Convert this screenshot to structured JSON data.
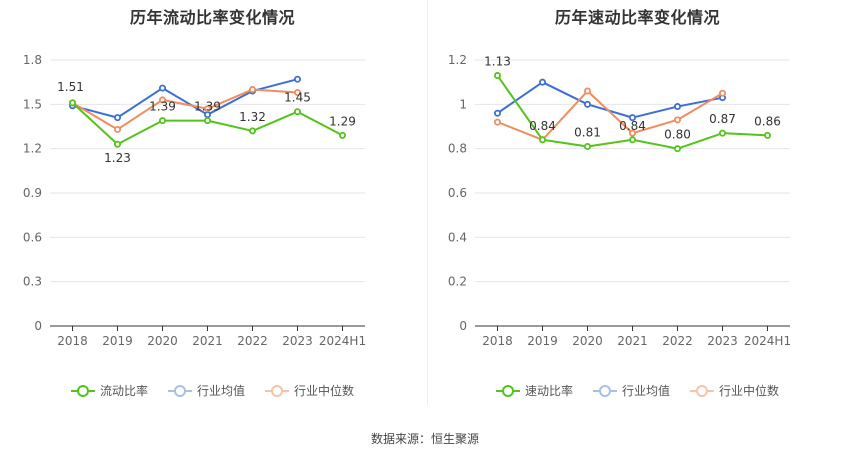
{
  "footer": {
    "source": "数据来源：恒生聚源"
  },
  "chart_data": [
    {
      "type": "line",
      "title": "历年流动比率变化情况",
      "categories": [
        "2018",
        "2019",
        "2020",
        "2021",
        "2022",
        "2023",
        "2024H1"
      ],
      "y_ticks": [
        "0",
        "0.3",
        "0.6",
        "0.9",
        "1.2",
        "1.5",
        "1.8"
      ],
      "ylim": [
        0,
        1.8
      ],
      "grid": true,
      "legend_position": "bottom",
      "series": [
        {
          "name": "流动比率",
          "color": "#52c41a",
          "values": [
            1.51,
            1.23,
            1.39,
            1.39,
            1.32,
            1.45,
            1.29
          ],
          "labels": [
            "1.51",
            "1.23",
            "1.39",
            "1.39",
            "1.32",
            "1.45",
            "1.29"
          ]
        },
        {
          "name": "行业均值",
          "color": "#3a6fd8",
          "values": [
            1.49,
            1.41,
            1.61,
            1.43,
            1.59,
            1.67,
            null
          ]
        },
        {
          "name": "行业中位数",
          "color": "#f28c5c",
          "values": [
            1.51,
            1.33,
            1.53,
            1.47,
            1.6,
            1.58,
            null
          ]
        }
      ]
    },
    {
      "type": "line",
      "title": "历年速动比率变化情况",
      "categories": [
        "2018",
        "2019",
        "2020",
        "2021",
        "2022",
        "2023",
        "2024H1"
      ],
      "y_ticks": [
        "0",
        "0.2",
        "0.4",
        "0.6",
        "0.8",
        "1",
        "1.2"
      ],
      "ylim": [
        0,
        1.2
      ],
      "grid": true,
      "legend_position": "bottom",
      "series": [
        {
          "name": "速动比率",
          "color": "#52c41a",
          "values": [
            1.13,
            0.84,
            0.81,
            0.84,
            0.8,
            0.87,
            0.86
          ],
          "labels": [
            "1.13",
            "0.84",
            "0.81",
            "0.84",
            "0.80",
            "0.87",
            "0.86"
          ]
        },
        {
          "name": "行业均值",
          "color": "#3a6fd8",
          "values": [
            0.96,
            1.1,
            1.0,
            0.94,
            0.99,
            1.03,
            null
          ]
        },
        {
          "name": "行业中位数",
          "color": "#f28c5c",
          "values": [
            0.92,
            0.84,
            1.06,
            0.87,
            0.93,
            1.05,
            null
          ]
        }
      ]
    }
  ]
}
